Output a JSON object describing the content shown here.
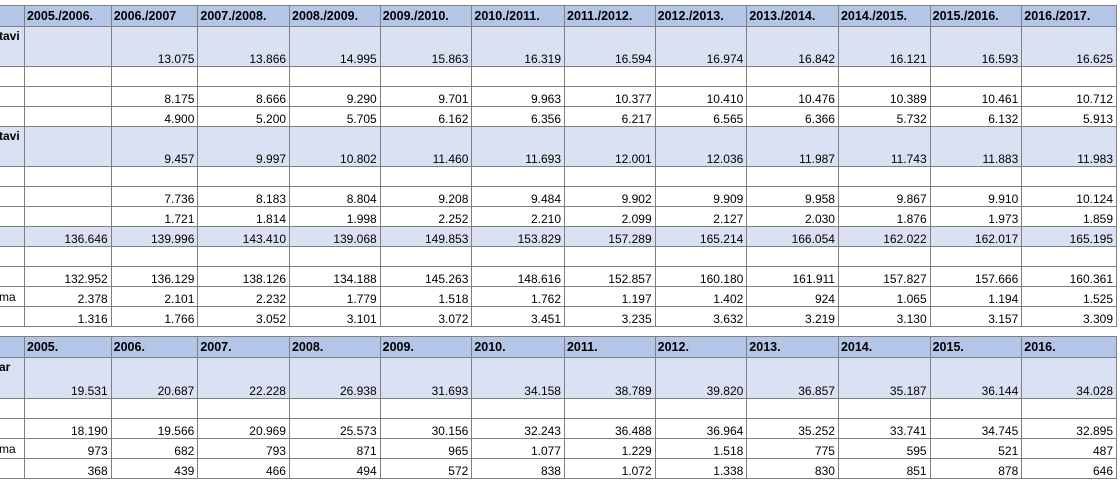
{
  "table1": {
    "headers": [
      "",
      "2005./2006.",
      "2006./2007",
      "2007./2008.",
      "2008./2009.",
      "2009./2010.",
      "2010./2011.",
      "2011./2012.",
      "2012./2013.",
      "2013./2014.",
      "2014./2015.",
      "2015./2016.",
      "2016./2017."
    ],
    "rows": [
      [
        "tavi",
        "",
        "13.075",
        "13.866",
        "14.995",
        "15.863",
        "16.319",
        "16.594",
        "16.974",
        "16.842",
        "16.121",
        "16.593",
        "16.625"
      ],
      [
        "",
        "",
        "",
        "",
        "",
        "",
        "",
        "",
        "",
        "",
        "",
        "",
        ""
      ],
      [
        "",
        "",
        "8.175",
        "8.666",
        "9.290",
        "9.701",
        "9.963",
        "10.377",
        "10.410",
        "10.476",
        "10.389",
        "10.461",
        "10.712"
      ],
      [
        "",
        "",
        "4.900",
        "5.200",
        "5.705",
        "6.162",
        "6.356",
        "6.217",
        "6.565",
        "6.366",
        "5.732",
        "6.132",
        "5.913"
      ],
      [
        "tavi",
        "",
        "9.457",
        "9.997",
        "10.802",
        "11.460",
        "11.693",
        "12.001",
        "12.036",
        "11.987",
        "11.743",
        "11.883",
        "11.983"
      ],
      [
        "",
        "",
        "",
        "",
        "",
        "",
        "",
        "",
        "",
        "",
        "",
        "",
        ""
      ],
      [
        "",
        "",
        "7.736",
        "8.183",
        "8.804",
        "9.208",
        "9.484",
        "9.902",
        "9.909",
        "9.958",
        "9.867",
        "9.910",
        "10.124"
      ],
      [
        "",
        "",
        "1.721",
        "1.814",
        "1.998",
        "2.252",
        "2.210",
        "2.099",
        "2.127",
        "2.030",
        "1.876",
        "1.973",
        "1.859"
      ],
      [
        "",
        "136.646",
        "139.996",
        "143.410",
        "139.068",
        "149.853",
        "153.829",
        "157.289",
        "165.214",
        "166.054",
        "162.022",
        "162.017",
        "165.195"
      ],
      [
        "",
        "",
        "",
        "",
        "",
        "",
        "",
        "",
        "",
        "",
        "",
        "",
        ""
      ],
      [
        "",
        "132.952",
        "136.129",
        "138.126",
        "134.188",
        "145.263",
        "148.616",
        "152.857",
        "160.180",
        "161.911",
        "157.827",
        "157.666",
        "160.361"
      ],
      [
        "ma",
        "2.378",
        "2.101",
        "2.232",
        "1.779",
        "1.518",
        "1.762",
        "1.197",
        "1.402",
        "924",
        "1.065",
        "1.194",
        "1.525"
      ],
      [
        "",
        "1.316",
        "1.766",
        "3.052",
        "3.101",
        "3.072",
        "3.451",
        "3.235",
        "3.632",
        "3.219",
        "3.130",
        "3.157",
        "3.309"
      ]
    ]
  },
  "table2": {
    "headers": [
      "",
      "2005.",
      "2006.",
      "2007.",
      "2008.",
      "2009.",
      "2010.",
      "2011.",
      "2012.",
      "2013.",
      "2014.",
      "2015.",
      "2016."
    ],
    "rows": [
      [
        "ar",
        "19.531",
        "20.687",
        "22.228",
        "26.938",
        "31.693",
        "34.158",
        "38.789",
        "39.820",
        "36.857",
        "35.187",
        "36.144",
        "34.028"
      ],
      [
        "",
        "",
        "",
        "",
        "",
        "",
        "",
        "",
        "",
        "",
        "",
        "",
        ""
      ],
      [
        "",
        "18.190",
        "19.566",
        "20.969",
        "25.573",
        "30.156",
        "32.243",
        "36.488",
        "36.964",
        "35.252",
        "33.741",
        "34.745",
        "32.895"
      ],
      [
        "ma",
        "973",
        "682",
        "793",
        "871",
        "965",
        "1.077",
        "1.229",
        "1.518",
        "775",
        "595",
        "521",
        "487"
      ],
      [
        "",
        "368",
        "439",
        "466",
        "494",
        "572",
        "838",
        "1.072",
        "1.338",
        "830",
        "851",
        "878",
        "646"
      ]
    ]
  },
  "colors": {
    "header_bg": "#b4c6e7",
    "row_highlight_bg": "#d9e1f2",
    "grid": "#7f7f7f"
  }
}
